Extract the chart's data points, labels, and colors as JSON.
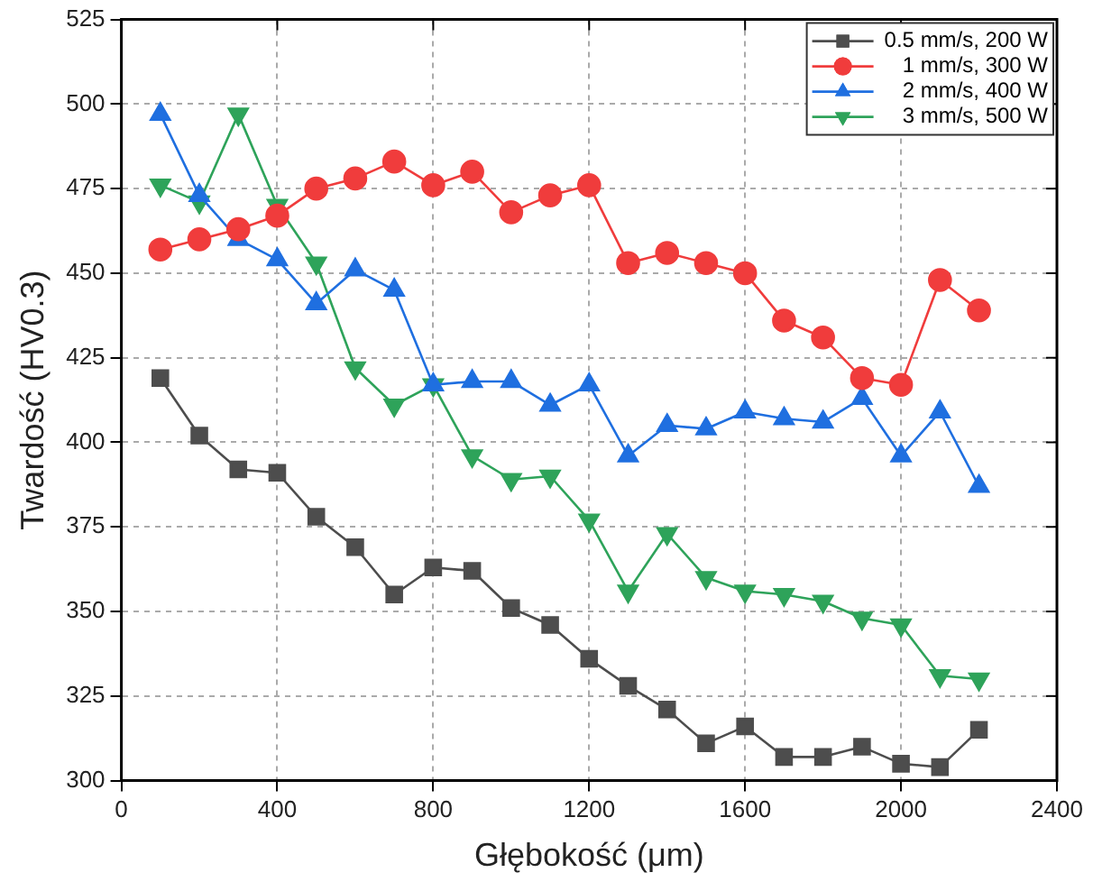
{
  "chart_data": {
    "type": "line",
    "xlabel": "Głębokość (μm)",
    "ylabel": "Twardość (HV0.3)",
    "x": [
      100,
      200,
      300,
      400,
      500,
      600,
      700,
      800,
      900,
      1000,
      1100,
      1200,
      1300,
      1400,
      1500,
      1600,
      1700,
      1800,
      1900,
      2000,
      2100,
      2200
    ],
    "series": [
      {
        "name": "0.5 mm/s, 200 W",
        "color": "#4d4d4d",
        "marker": "square",
        "values": [
          419,
          402,
          392,
          391,
          378,
          369,
          355,
          363,
          362,
          351,
          346,
          336,
          328,
          321,
          311,
          316,
          307,
          307,
          310,
          305,
          304,
          315
        ]
      },
      {
        "name": "1 mm/s, 300 W",
        "color": "#f03c3c",
        "marker": "circle",
        "values": [
          457,
          460,
          463,
          467,
          475,
          478,
          483,
          476,
          480,
          468,
          473,
          476,
          453,
          456,
          453,
          450,
          436,
          431,
          419,
          417,
          448,
          439
        ]
      },
      {
        "name": "2 mm/s, 400 W",
        "color": "#1f6fe0",
        "marker": "triangle",
        "values": [
          497,
          473,
          460,
          454,
          441,
          451,
          445,
          417,
          418,
          418,
          411,
          417,
          396,
          405,
          404,
          409,
          407,
          406,
          413,
          396,
          409,
          387
        ]
      },
      {
        "name": "3 mm/s, 500 W",
        "color": "#2ea35a",
        "marker": "triangle-down",
        "values": [
          476,
          471,
          497,
          470,
          453,
          422,
          411,
          417,
          396,
          389,
          390,
          377,
          356,
          373,
          360,
          356,
          355,
          353,
          348,
          346,
          331,
          330
        ]
      }
    ],
    "xlim": [
      0,
      2400
    ],
    "xticks": [
      0,
      400,
      800,
      1200,
      1600,
      2000,
      2400
    ],
    "ylim": [
      300,
      525
    ],
    "yticks": [
      300,
      325,
      350,
      375,
      400,
      425,
      450,
      475,
      500,
      525
    ],
    "grid": true,
    "legend": "top right",
    "line_style": "solid"
  }
}
